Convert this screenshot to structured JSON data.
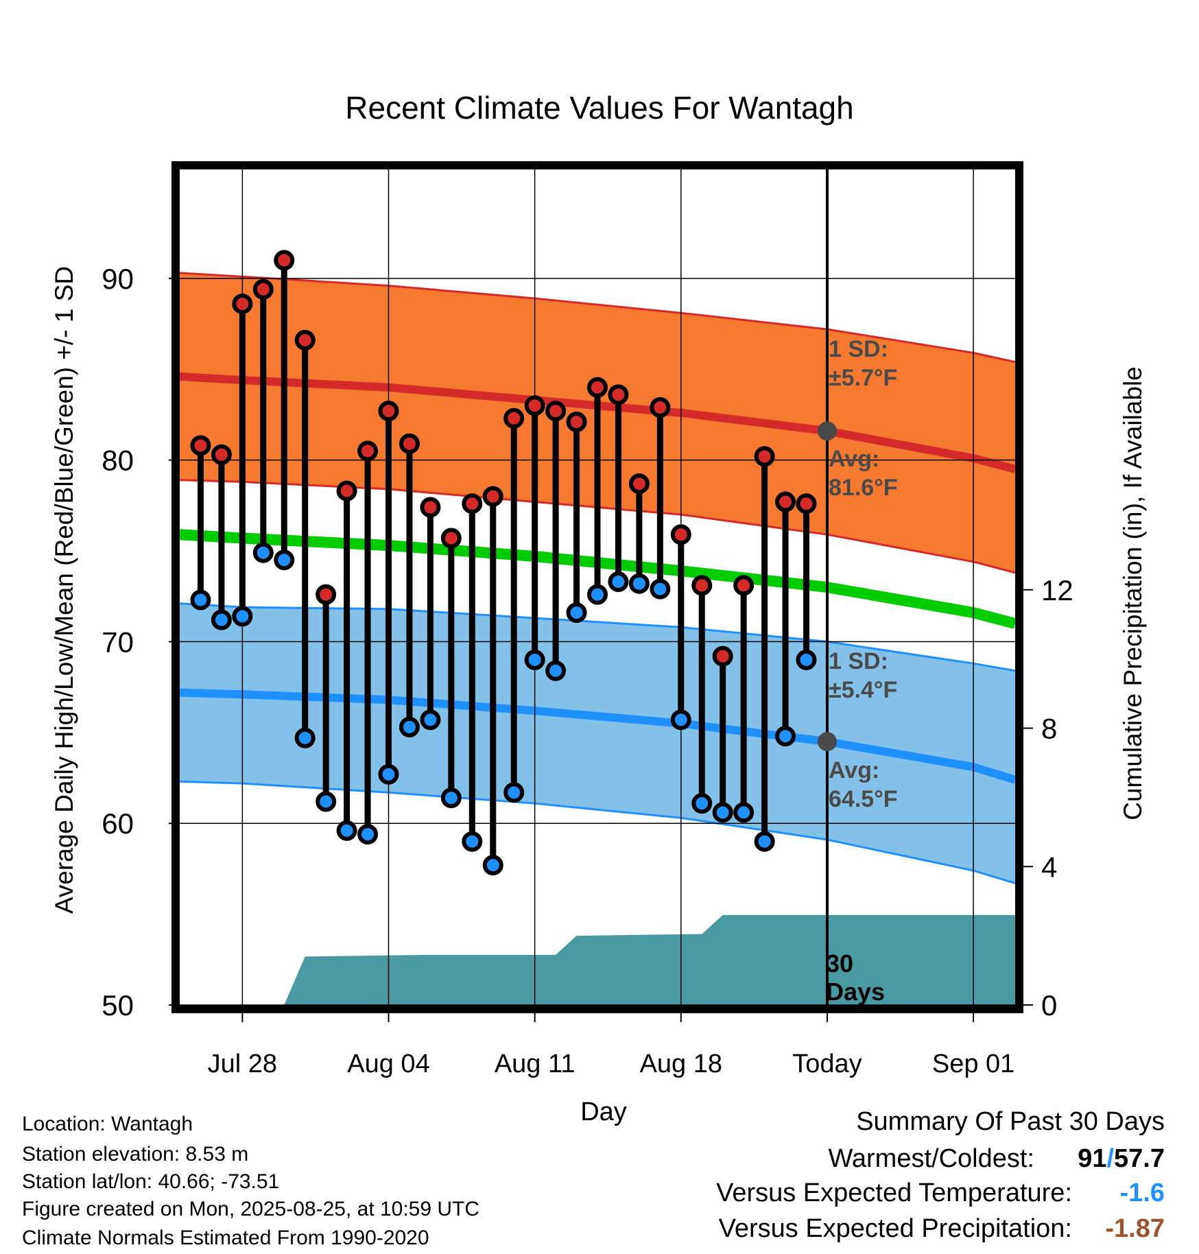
{
  "title": "Recent Climate Values For Wantagh",
  "footer": {
    "location": "Location: Wantagh",
    "elevation": "Station elevation: 8.53 m",
    "latlon": "Station lat/lon: 40.66; -73.51",
    "created": "Figure created on Mon, 2025-08-25, at 10:59 UTC",
    "normals": "Climate Normals Estimated From 1990-2020"
  },
  "summary": {
    "heading": "Summary Of Past 30 Days",
    "warm_cold_label": "Warmest/Coldest:",
    "warmest": "91",
    "slash": "/",
    "coldest": "57.7",
    "temp_label": "Versus Expected Temperature:",
    "temp_value": "-1.6",
    "precip_label": "Versus Expected Precipitation:",
    "precip_value": "-1.87"
  },
  "chart_data": {
    "type": "line",
    "xlabel": "Day",
    "ylabel": "Average Daily High/Low/Mean (Red/Blue/Green) +/- 1 SD",
    "y2label": "Cumulative Precipitation (in), If Available",
    "ylim": [
      50,
      96
    ],
    "y_ticks": [
      50,
      60,
      70,
      80,
      90
    ],
    "y2_ticks": [
      0,
      4,
      8,
      12
    ],
    "y2_axis": {
      "at_left_value": 50,
      "value": 0,
      "at_left_value2": 70,
      "value2": 10.5
    },
    "x_dates": [
      "2025-07-25",
      "2025-09-03"
    ],
    "x_ticks": [
      {
        "date": "2025-07-28",
        "label": "Jul 28"
      },
      {
        "date": "2025-08-04",
        "label": "Aug 04"
      },
      {
        "date": "2025-08-11",
        "label": "Aug 11"
      },
      {
        "date": "2025-08-18",
        "label": "Aug 18"
      },
      {
        "date": "2025-08-25",
        "label": "Today"
      },
      {
        "date": "2025-09-01",
        "label": "Sep 01"
      }
    ],
    "today": "2025-08-25",
    "normals": {
      "dates": [
        "2025-07-25",
        "2025-07-28",
        "2025-08-04",
        "2025-08-11",
        "2025-08-18",
        "2025-08-25",
        "2025-09-01",
        "2025-09-03"
      ],
      "high_upper": [
        90.3,
        90.1,
        89.6,
        88.9,
        88.1,
        87.2,
        85.9,
        85.4
      ],
      "high_mean": [
        84.6,
        84.4,
        84.0,
        83.3,
        82.6,
        81.6,
        80.1,
        79.5
      ],
      "high_lower": [
        78.9,
        78.8,
        78.4,
        77.7,
        77.0,
        75.9,
        74.4,
        73.8
      ],
      "mean": [
        75.9,
        75.7,
        75.3,
        74.7,
        73.9,
        73.0,
        71.6,
        71.0
      ],
      "low_upper": [
        72.1,
        71.9,
        71.8,
        71.3,
        70.8,
        70.0,
        68.8,
        68.4
      ],
      "low_mean": [
        67.2,
        67.1,
        66.8,
        66.2,
        65.5,
        64.5,
        63.1,
        62.4
      ],
      "low_lower": [
        62.3,
        62.2,
        61.7,
        61.1,
        60.3,
        59.1,
        57.4,
        56.7
      ]
    },
    "today_labels": {
      "high_sd": "1 SD:",
      "high_sd_value": "±5.7°F",
      "high_avg": "Avg:",
      "high_avg_value": "81.6°F",
      "low_sd": "1 SD:",
      "low_sd_value": "±5.4°F",
      "low_avg": "Avg:",
      "low_avg_value": "64.5°F"
    },
    "today_marker_values": {
      "high": 81.6,
      "low": 64.5
    },
    "series": [
      {
        "name": "High",
        "color": "#d42a2a"
      },
      {
        "name": "Low",
        "color": "#1e90ff"
      }
    ],
    "daily": {
      "dates": [
        "2025-07-26",
        "2025-07-27",
        "2025-07-28",
        "2025-07-29",
        "2025-07-30",
        "2025-07-31",
        "2025-08-01",
        "2025-08-02",
        "2025-08-03",
        "2025-08-04",
        "2025-08-05",
        "2025-08-06",
        "2025-08-07",
        "2025-08-08",
        "2025-08-09",
        "2025-08-10",
        "2025-08-11",
        "2025-08-12",
        "2025-08-13",
        "2025-08-14",
        "2025-08-15",
        "2025-08-16",
        "2025-08-17",
        "2025-08-18",
        "2025-08-19",
        "2025-08-20",
        "2025-08-21",
        "2025-08-22",
        "2025-08-23",
        "2025-08-24"
      ],
      "high": [
        80.8,
        80.3,
        88.6,
        89.4,
        91.0,
        86.6,
        72.6,
        78.3,
        80.5,
        82.7,
        80.9,
        77.4,
        75.7,
        77.6,
        78.0,
        82.3,
        83.0,
        82.7,
        82.1,
        84.0,
        83.6,
        78.7,
        82.9,
        75.9,
        73.1,
        69.2,
        73.1,
        80.2,
        77.7,
        77.6
      ],
      "low": [
        72.3,
        71.2,
        71.4,
        74.9,
        74.5,
        64.7,
        61.2,
        59.6,
        59.4,
        62.7,
        65.3,
        65.7,
        61.4,
        59.0,
        57.7,
        61.7,
        69.0,
        68.4,
        71.6,
        72.6,
        73.3,
        73.2,
        72.9,
        65.7,
        61.1,
        60.6,
        60.6,
        59.0,
        64.8,
        69.0
      ]
    },
    "precip": {
      "color": "#4a9aa4",
      "points": [
        {
          "date": "2025-07-30",
          "value": 0.0
        },
        {
          "date": "2025-07-31",
          "value": 1.4
        },
        {
          "date": "2025-08-06",
          "value": 1.45
        },
        {
          "date": "2025-08-12",
          "value": 1.45
        },
        {
          "date": "2025-08-13",
          "value": 2.0
        },
        {
          "date": "2025-08-19",
          "value": 2.05
        },
        {
          "date": "2025-08-20",
          "value": 2.6
        },
        {
          "date": "2025-09-03",
          "value": 2.6
        }
      ],
      "label_line1": "30",
      "label_line2": "Days"
    }
  }
}
